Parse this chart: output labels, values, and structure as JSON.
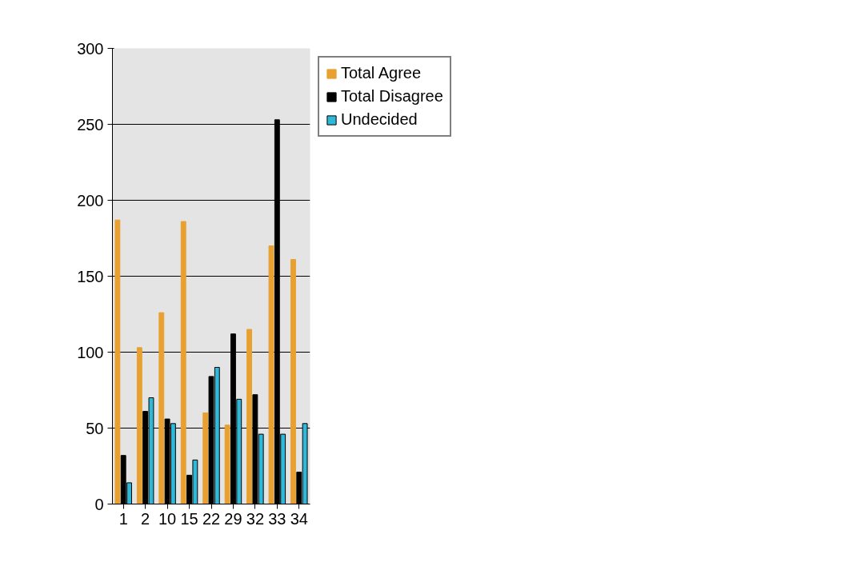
{
  "chart_data": {
    "type": "bar",
    "categories": [
      "1",
      "2",
      "10",
      "15",
      "22",
      "29",
      "32",
      "33",
      "34"
    ],
    "series": [
      {
        "name": "Total Agree",
        "color": "#e8a030",
        "values": [
          187,
          103,
          126,
          186,
          60,
          52,
          115,
          170,
          161
        ]
      },
      {
        "name": "Total Disagree",
        "color": "#000000",
        "values": [
          32,
          61,
          56,
          19,
          84,
          112,
          72,
          253,
          21
        ]
      },
      {
        "name": "Undecided",
        "color": "#30b8d8",
        "values": [
          14,
          70,
          53,
          29,
          90,
          69,
          46,
          46,
          53
        ]
      }
    ],
    "ylim": [
      0,
      300
    ],
    "yticks": [
      0,
      50,
      100,
      150,
      200,
      250,
      300
    ],
    "grid": "y",
    "legend": "top right"
  }
}
